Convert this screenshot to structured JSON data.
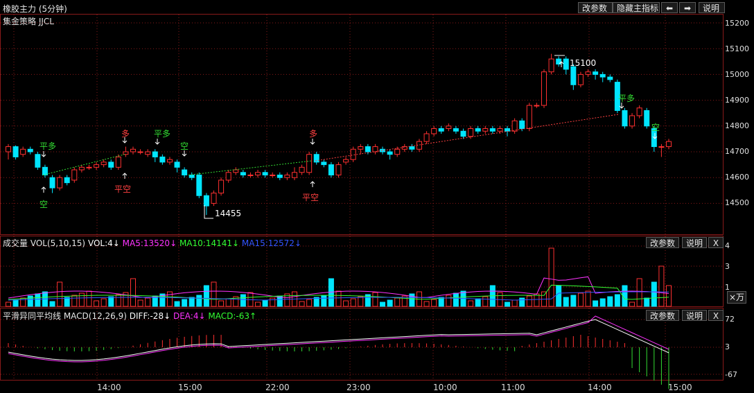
{
  "header": {
    "title": "橡胶主力 (5分钟)",
    "subtitle": "集金策略 JJCL",
    "buttons": {
      "params": "改参数",
      "hide_indicator": "隐藏主指标",
      "back": "⬅",
      "forward": "➡",
      "help": "说明"
    }
  },
  "price_axis": [
    "15200",
    "15100",
    "15000",
    "14900",
    "14800",
    "14700",
    "14600",
    "14500"
  ],
  "annotations": {
    "high": "15100",
    "low": "14455",
    "signals": [
      {
        "text": "平多",
        "color": "#33dd33"
      },
      {
        "text": "空",
        "color": "#33dd33"
      },
      {
        "text": "多",
        "color": "#ff4040"
      },
      {
        "text": "平空",
        "color": "#ff4040"
      },
      {
        "text": "平多",
        "color": "#33dd33"
      },
      {
        "text": "空",
        "color": "#33dd33"
      },
      {
        "text": "多",
        "color": "#ff4040"
      },
      {
        "text": "平空",
        "color": "#ff4040"
      },
      {
        "text": "平多",
        "color": "#33dd33"
      },
      {
        "text": "空",
        "color": "#33dd33"
      }
    ]
  },
  "volume_panel": {
    "title": "成交量 VOL(5,10,15)",
    "vol": "VOL:4↓",
    "ma5": "MA5:13520↓",
    "ma10": "MA10:14141↓",
    "ma15": "MA15:12572↓",
    "ma5_color": "#ff33ff",
    "ma10_color": "#33ff33",
    "ma15_color": "#3355ff",
    "buttons": {
      "params": "改参数",
      "help": "说明",
      "close": "X"
    },
    "axis": [
      "4",
      "3",
      "1"
    ],
    "unit": "×万"
  },
  "macd_panel": {
    "title": "平滑异同平均线 MACD(12,26,9)",
    "diff": "DIFF:-28↓",
    "dea": "DEA:4↓",
    "macd": "MACD:-63↑",
    "dea_color": "#ff33ff",
    "macd_color": "#33ff33",
    "buttons": {
      "params": "改参数",
      "help": "说明",
      "close": "X"
    },
    "axis": [
      "72",
      "3",
      "-67"
    ]
  },
  "time_axis": [
    "14:00",
    "15:00",
    "22:00",
    "23:00",
    "10:00",
    "11:00",
    "14:00",
    "15:00"
  ],
  "colors": {
    "up": "#ff3030",
    "down": "#00e5ff",
    "grid": "#8a1a1a"
  }
}
